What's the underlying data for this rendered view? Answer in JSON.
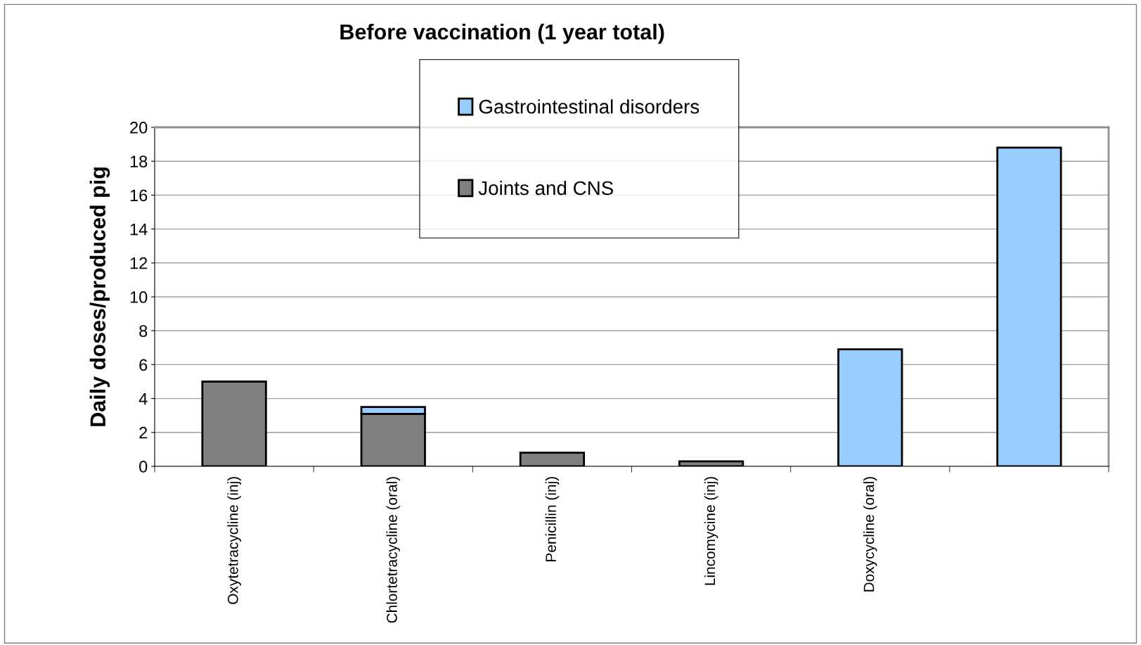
{
  "chart_data": {
    "type": "bar",
    "title": "Before vaccination (1 year total)",
    "ylabel": "Daily doses/produced pig",
    "categories": [
      "Oxytetracycline (inj)",
      "Chlortetracycline (oral)",
      "Penicillin (inj)",
      "Lincomycine (inj)",
      "Doxycycline (oral)",
      null
    ],
    "series": [
      {
        "name": "Joints and CNS",
        "color": "#808080",
        "values": [
          5.0,
          3.1,
          0.8,
          0.3,
          null,
          null
        ]
      },
      {
        "name": "Gastrointestinal disorders",
        "color": "#99ccff",
        "values": [
          null,
          0.4,
          null,
          null,
          6.9,
          18.8
        ]
      }
    ],
    "stacked": true,
    "ylim": [
      0,
      20
    ],
    "yticks": [
      0,
      2,
      4,
      6,
      8,
      10,
      12,
      14,
      16,
      18,
      20
    ],
    "grid": "y",
    "legend": "top"
  }
}
